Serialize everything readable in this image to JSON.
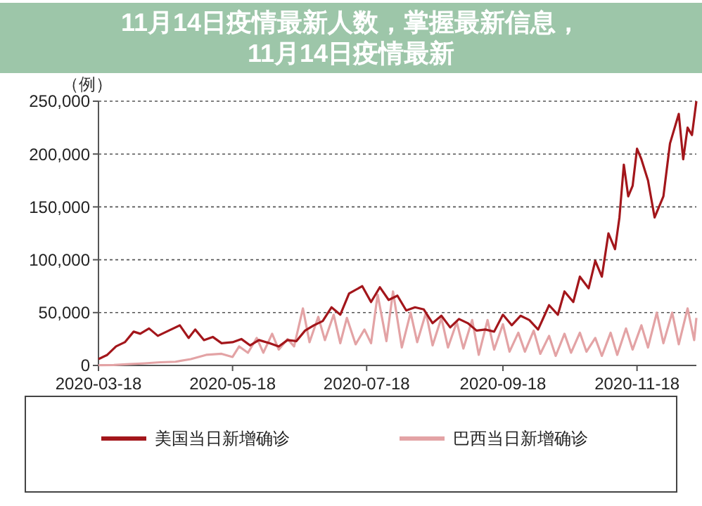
{
  "chart_data": {
    "type": "line",
    "title": "11月14日疫情最新人数，掌握最新信息，11月14日疫情最新",
    "ylabel": "（例）",
    "xlim": [
      "2020-03-18",
      "2020-12-15"
    ],
    "xticks": [
      "2020-03-18",
      "2020-05-18",
      "2020-07-18",
      "2020-09-18",
      "2020-11-18"
    ],
    "ylim": [
      0,
      250000
    ],
    "yticks": [
      0,
      {
        "value": 50000,
        "label": "50,000"
      },
      {
        "value": 100000,
        "label": "100,000"
      },
      {
        "value": 150000,
        "label": "150,000"
      },
      {
        "value": 200000,
        "label": "200,000"
      },
      {
        "value": 250000,
        "label": "250,000"
      }
    ],
    "grid": "y",
    "legend": "bottom",
    "line_style": "solid",
    "marker": "none",
    "series": [
      {
        "name": "美国当日新增确诊",
        "color": "#a3161b",
        "x": [
          "2020-03-18",
          "2020-03-22",
          "2020-03-26",
          "2020-03-30",
          "2020-04-03",
          "2020-04-06",
          "2020-04-10",
          "2020-04-14",
          "2020-04-18",
          "2020-04-24",
          "2020-04-28",
          "2020-05-01",
          "2020-05-05",
          "2020-05-09",
          "2020-05-13",
          "2020-05-18",
          "2020-05-22",
          "2020-05-26",
          "2020-05-30",
          "2020-06-04",
          "2020-06-08",
          "2020-06-12",
          "2020-06-16",
          "2020-06-20",
          "2020-06-24",
          "2020-06-28",
          "2020-07-02",
          "2020-07-06",
          "2020-07-10",
          "2020-07-16",
          "2020-07-20",
          "2020-07-24",
          "2020-07-28",
          "2020-08-01",
          "2020-08-05",
          "2020-08-09",
          "2020-08-13",
          "2020-08-17",
          "2020-08-21",
          "2020-08-25",
          "2020-08-29",
          "2020-09-02",
          "2020-09-06",
          "2020-09-10",
          "2020-09-14",
          "2020-09-18",
          "2020-09-22",
          "2020-09-26",
          "2020-09-30",
          "2020-10-04",
          "2020-10-09",
          "2020-10-13",
          "2020-10-16",
          "2020-10-20",
          "2020-10-23",
          "2020-10-27",
          "2020-10-30",
          "2020-11-02",
          "2020-11-05",
          "2020-11-08",
          "2020-11-10",
          "2020-11-12",
          "2020-11-14",
          "2020-11-16",
          "2020-11-18",
          "2020-11-20",
          "2020-11-23",
          "2020-11-26",
          "2020-11-30",
          "2020-12-03",
          "2020-12-07",
          "2020-12-09",
          "2020-12-11",
          "2020-12-13",
          "2020-12-15"
        ],
        "values": [
          6000,
          10000,
          18000,
          22000,
          32000,
          30000,
          35000,
          28000,
          32000,
          38000,
          26000,
          34000,
          24000,
          27000,
          21000,
          22000,
          25000,
          19000,
          24000,
          21000,
          18000,
          24000,
          23000,
          33000,
          38000,
          42000,
          55000,
          48000,
          68000,
          75000,
          60000,
          74000,
          62000,
          66000,
          52000,
          55000,
          53000,
          40000,
          47000,
          36000,
          44000,
          40000,
          33000,
          34000,
          32000,
          48000,
          38000,
          47000,
          43000,
          34000,
          57000,
          48000,
          70000,
          60000,
          84000,
          73000,
          99000,
          84000,
          125000,
          110000,
          140000,
          190000,
          160000,
          170000,
          205000,
          195000,
          175000,
          140000,
          160000,
          210000,
          238000,
          195000,
          225000,
          218000,
          250000
        ]
      },
      {
        "name": "巴西当日新增确诊",
        "color": "#e3a3a5",
        "x": [
          "2020-03-18",
          "2020-03-25",
          "2020-04-01",
          "2020-04-08",
          "2020-04-15",
          "2020-04-22",
          "2020-04-29",
          "2020-05-06",
          "2020-05-13",
          "2020-05-18",
          "2020-05-21",
          "2020-05-25",
          "2020-05-29",
          "2020-06-01",
          "2020-06-05",
          "2020-06-08",
          "2020-06-12",
          "2020-06-15",
          "2020-06-19",
          "2020-06-22",
          "2020-06-26",
          "2020-06-29",
          "2020-07-03",
          "2020-07-06",
          "2020-07-09",
          "2020-07-13",
          "2020-07-17",
          "2020-07-20",
          "2020-07-23",
          "2020-07-27",
          "2020-07-30",
          "2020-08-03",
          "2020-08-07",
          "2020-08-10",
          "2020-08-14",
          "2020-08-17",
          "2020-08-21",
          "2020-08-24",
          "2020-08-28",
          "2020-08-31",
          "2020-09-04",
          "2020-09-07",
          "2020-09-11",
          "2020-09-14",
          "2020-09-18",
          "2020-09-21",
          "2020-09-25",
          "2020-09-28",
          "2020-10-02",
          "2020-10-05",
          "2020-10-09",
          "2020-10-12",
          "2020-10-16",
          "2020-10-19",
          "2020-10-23",
          "2020-10-26",
          "2020-10-30",
          "2020-11-02",
          "2020-11-06",
          "2020-11-09",
          "2020-11-13",
          "2020-11-16",
          "2020-11-20",
          "2020-11-23",
          "2020-11-27",
          "2020-11-30",
          "2020-12-04",
          "2020-12-07",
          "2020-12-11",
          "2020-12-14",
          "2020-12-15"
        ],
        "values": [
          300,
          400,
          1200,
          2000,
          3000,
          3500,
          6000,
          10000,
          11000,
          8000,
          18000,
          12000,
          26000,
          12000,
          30000,
          15000,
          25000,
          18000,
          54000,
          22000,
          46000,
          24000,
          48000,
          21000,
          45000,
          20000,
          34000,
          21000,
          67000,
          23000,
          70000,
          17000,
          50000,
          22000,
          50000,
          19000,
          45000,
          17000,
          41000,
          16000,
          43000,
          10000,
          43000,
          15000,
          39000,
          13000,
          31000,
          13000,
          33000,
          11000,
          28000,
          9000,
          30000,
          12000,
          31000,
          13000,
          26000,
          9000,
          31000,
          10000,
          35000,
          15000,
          38000,
          17000,
          50000,
          21000,
          50000,
          20000,
          54000,
          24000,
          45000
        ]
      }
    ]
  }
}
